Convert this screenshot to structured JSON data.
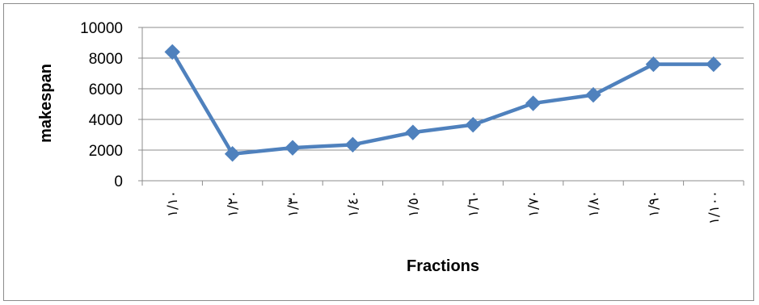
{
  "chart_data": {
    "type": "line",
    "title": "",
    "xlabel": "Fractions",
    "ylabel": "makespan",
    "categories": [
      "١/١٠",
      "١/٢٠",
      "١/٣٠",
      "١/٤٠",
      "١/٥٠",
      "١/٦٠",
      "١/٧٠",
      "١/٨٠",
      "١/٩٠",
      "١/١٠٠"
    ],
    "series": [
      {
        "values": [
          8400,
          1750,
          2150,
          2350,
          3150,
          3650,
          5050,
          5600,
          7600,
          7600
        ],
        "color": "#4f81bd",
        "marker": "diamond"
      }
    ],
    "yticks": [
      "10000",
      "8000",
      "6000",
      "4000",
      "2000",
      "0"
    ],
    "ylim": [
      0,
      10000
    ],
    "grid": "horizontal",
    "legend": "none"
  }
}
